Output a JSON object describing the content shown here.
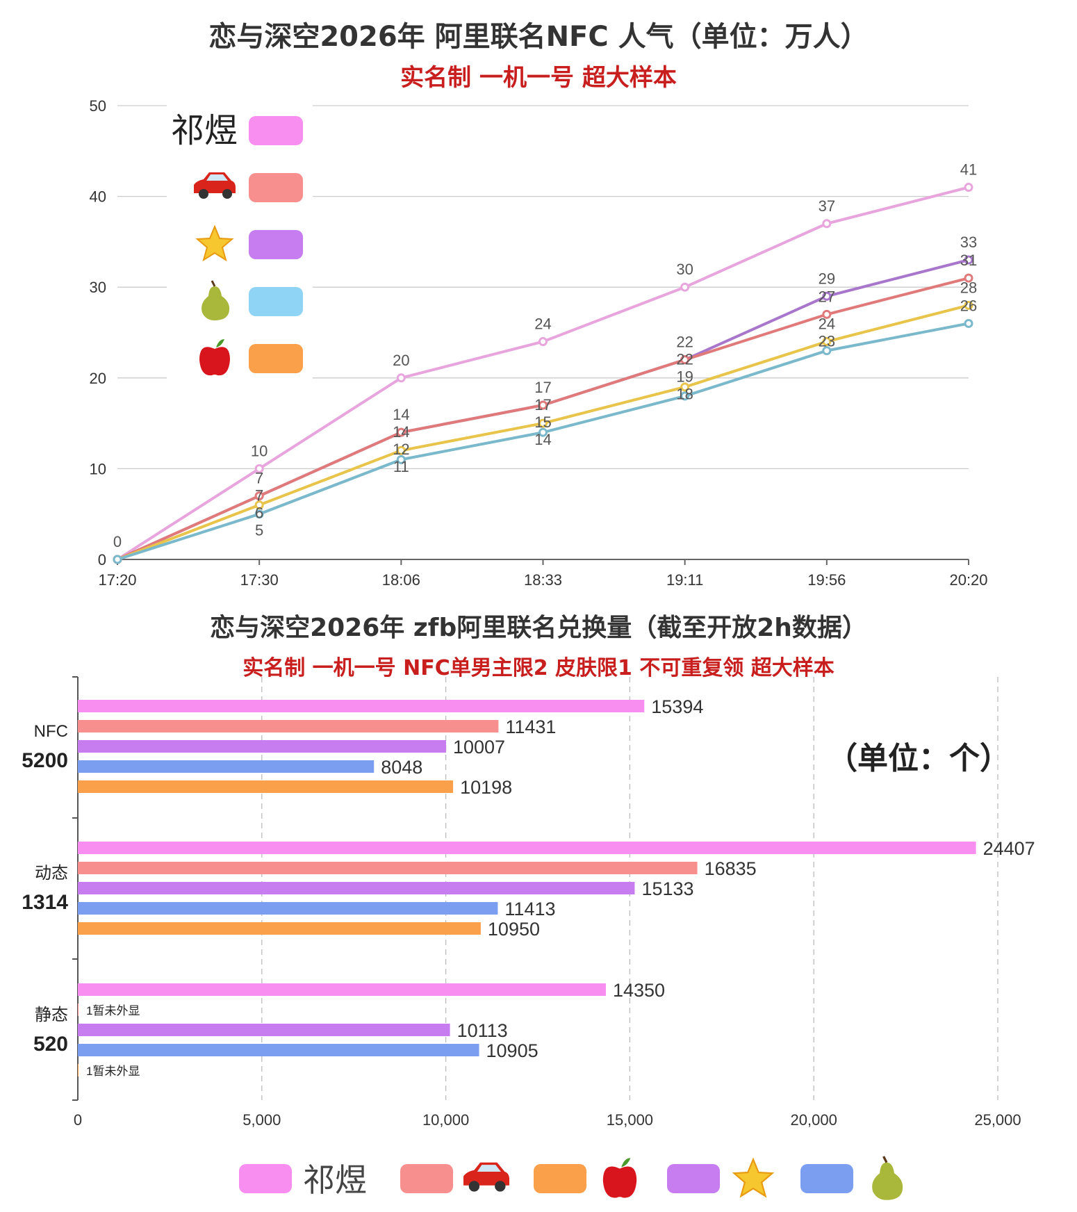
{
  "chart_data": [
    {
      "type": "line",
      "title": "恋与深空2026年 阿里联名NFC 人气（单位：万人）",
      "subtitle": "实名制 一机一号 超大样本",
      "categories": [
        "17:20",
        "17:30",
        "18:06",
        "18:33",
        "19:11",
        "19:56",
        "20:20"
      ],
      "ylim": [
        0,
        50
      ],
      "yticks": [
        0,
        10,
        20,
        30,
        40,
        50
      ],
      "grid": true,
      "legend_placement": "top-left",
      "series": [
        {
          "name": "祁煜",
          "icon": "text",
          "color": "#e8a4dc",
          "swatch": "#f78ef0",
          "values": [
            0,
            10,
            20,
            24,
            30,
            37,
            41
          ]
        },
        {
          "icon": "star-icon",
          "color": "#a877cc",
          "swatch": "#c77cf0",
          "values": [
            0,
            7,
            14,
            17,
            22,
            29,
            33
          ]
        },
        {
          "icon": "car-icon",
          "color": "#e07a7a",
          "swatch": "#f78f8f",
          "values": [
            0,
            7,
            14,
            17,
            22,
            27,
            31
          ]
        },
        {
          "icon": "apple-icon",
          "color": "#e8c44a",
          "swatch": "#fba04a",
          "values": [
            0,
            6,
            12,
            15,
            19,
            24,
            28
          ]
        },
        {
          "icon": "pear-icon",
          "color": "#7ab8cc",
          "swatch": "#8fd3f5",
          "values": [
            0,
            5,
            11,
            14,
            18,
            23,
            26
          ]
        }
      ],
      "legend_order": [
        0,
        2,
        1,
        4,
        3
      ]
    },
    {
      "type": "bar",
      "orientation": "horizontal",
      "title": "恋与深空2026年 zfb阿里联名兑换量（截至开放2h数据）",
      "subtitle": "实名制 一机一号 NFC单男主限2 皮肤限1 不可重复领 超大样本",
      "unit_note": "（单位：个）",
      "xlim": [
        0,
        25000
      ],
      "xticks": [
        "0",
        "5,000",
        "10,000",
        "15,000",
        "20,000",
        "25,000"
      ],
      "grid": true,
      "legend_placement": "bottom",
      "categories": [
        {
          "name": "NFC",
          "price": "5200"
        },
        {
          "name": "动态",
          "price": "1314"
        },
        {
          "name": "静态",
          "price": "520"
        }
      ],
      "series": [
        {
          "name": "祁煜",
          "icon": "text",
          "color": "#f78ef0",
          "values": [
            15394,
            24407,
            14350
          ]
        },
        {
          "icon": "car-icon",
          "color": "#f78f8f",
          "values": [
            11431,
            16835,
            1
          ]
        },
        {
          "icon": "star-icon",
          "color": "#c77cf0",
          "values": [
            10007,
            15133,
            10113
          ]
        },
        {
          "icon": "pear-icon",
          "color": "#7b9ef0",
          "values": [
            8048,
            11413,
            10905
          ]
        },
        {
          "icon": "apple-icon",
          "color": "#fba04a",
          "values": [
            10198,
            10950,
            1
          ]
        }
      ],
      "hidden_label": "暂未外显",
      "legend_order": [
        0,
        1,
        4,
        2,
        3
      ]
    }
  ]
}
